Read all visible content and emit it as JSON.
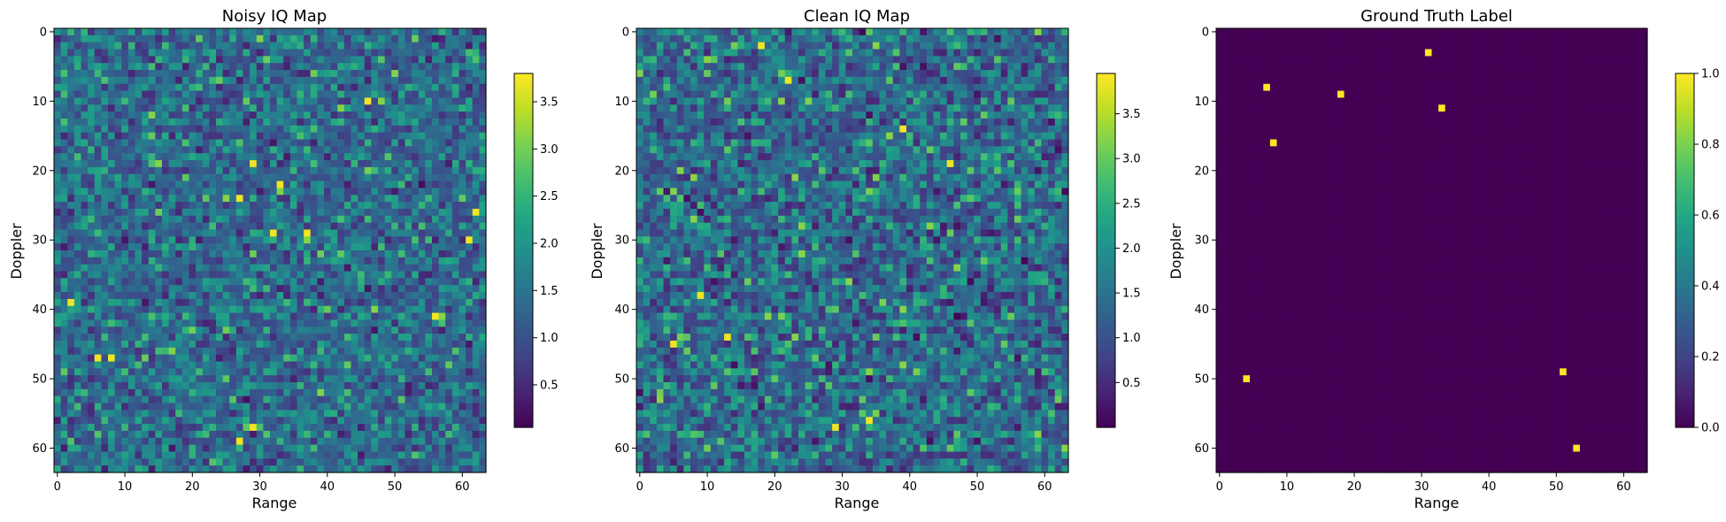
{
  "chart_data": [
    {
      "type": "heatmap",
      "title": "Noisy IQ Map",
      "xlabel": "Range",
      "ylabel": "Doppler",
      "grid_size": [
        64,
        64
      ],
      "xlim": [
        -0.5,
        63.5
      ],
      "ylim": [
        63.5,
        -0.5
      ],
      "xticks": [
        0,
        10,
        20,
        30,
        40,
        50,
        60
      ],
      "yticks": [
        0,
        10,
        20,
        30,
        40,
        50,
        60
      ],
      "colormap": "viridis",
      "color_range": [
        0.05,
        3.8
      ],
      "colorbar_ticks": [
        0.5,
        1.0,
        1.5,
        2.0,
        2.5,
        3.0,
        3.5
      ],
      "colorbar_tick_labels": [
        "0.5",
        "1.0",
        "1.5",
        "2.0",
        "2.5",
        "3.0",
        "3.5"
      ],
      "seed": 7,
      "value_mean": 1.45,
      "value_spread": 0.85,
      "bright_cells": [
        [
          46,
          10
        ],
        [
          29,
          19
        ],
        [
          27,
          24
        ],
        [
          32,
          29
        ],
        [
          37,
          29
        ],
        [
          6,
          47
        ],
        [
          8,
          47
        ],
        [
          33,
          22
        ],
        [
          27,
          59
        ],
        [
          29,
          57
        ],
        [
          56,
          41
        ],
        [
          62,
          26
        ],
        [
          61,
          30
        ],
        [
          2,
          39
        ]
      ]
    },
    {
      "type": "heatmap",
      "title": "Clean IQ Map",
      "xlabel": "Range",
      "ylabel": "Doppler",
      "grid_size": [
        64,
        64
      ],
      "xlim": [
        -0.5,
        63.5
      ],
      "ylim": [
        63.5,
        -0.5
      ],
      "xticks": [
        0,
        10,
        20,
        30,
        40,
        50,
        60
      ],
      "yticks": [
        0,
        10,
        20,
        30,
        40,
        50,
        60
      ],
      "colormap": "viridis",
      "color_range": [
        0.0,
        3.95
      ],
      "colorbar_ticks": [
        0.5,
        1.0,
        1.5,
        2.0,
        2.5,
        3.0,
        3.5
      ],
      "colorbar_tick_labels": [
        "0.5",
        "1.0",
        "1.5",
        "2.0",
        "2.5",
        "3.0",
        "3.5"
      ],
      "seed": 23,
      "value_mean": 1.3,
      "value_spread": 1.0,
      "bright_cells": [
        [
          18,
          2
        ],
        [
          22,
          7
        ],
        [
          46,
          19
        ],
        [
          39,
          14
        ],
        [
          29,
          57
        ],
        [
          34,
          56
        ],
        [
          13,
          44
        ],
        [
          9,
          38
        ],
        [
          5,
          45
        ]
      ]
    },
    {
      "type": "heatmap",
      "title": "Ground Truth Label",
      "xlabel": "Range",
      "ylabel": "Doppler",
      "grid_size": [
        64,
        64
      ],
      "xlim": [
        -0.5,
        63.5
      ],
      "ylim": [
        63.5,
        -0.5
      ],
      "xticks": [
        0,
        10,
        20,
        30,
        40,
        50,
        60
      ],
      "yticks": [
        0,
        10,
        20,
        30,
        40,
        50,
        60
      ],
      "colormap": "viridis",
      "color_range": [
        0.0,
        1.0
      ],
      "colorbar_ticks": [
        0.0,
        0.2,
        0.4,
        0.6,
        0.8,
        1.0
      ],
      "colorbar_tick_labels": [
        "0.0",
        "0.2",
        "0.4",
        "0.6",
        "0.8",
        "1.0"
      ],
      "background_value": 0,
      "target_value": 1,
      "targets": [
        [
          31,
          3
        ],
        [
          7,
          8
        ],
        [
          18,
          9
        ],
        [
          33,
          11
        ],
        [
          8,
          16
        ],
        [
          4,
          50
        ],
        [
          51,
          49
        ],
        [
          53,
          60
        ]
      ]
    }
  ]
}
